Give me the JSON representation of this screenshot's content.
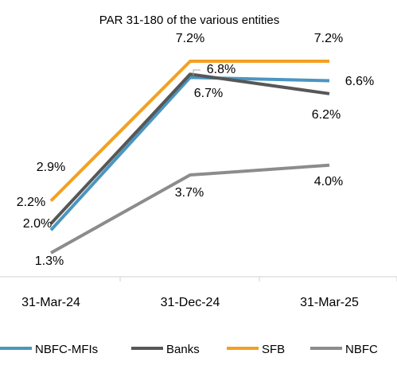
{
  "chart_data": {
    "type": "line",
    "title": "PAR 31-180 of the various entities",
    "xlabel": "",
    "ylabel": "",
    "categories": [
      "31-Mar-24",
      "31-Dec-24",
      "31-Mar-25"
    ],
    "ylim": [
      0,
      8
    ],
    "grid": false,
    "legend_position": "bottom",
    "series": [
      {
        "name": "NBFC-MFIs",
        "color": "#4a96c0",
        "values": [
          2.0,
          6.7,
          6.6
        ],
        "labels": [
          "2.0%",
          "6.7%",
          "6.6%"
        ]
      },
      {
        "name": "Banks",
        "color": "#575757",
        "values": [
          2.2,
          6.8,
          6.2
        ],
        "labels": [
          "2.2%",
          "6.8%",
          "6.2%"
        ]
      },
      {
        "name": "SFB",
        "color": "#f4a020",
        "values": [
          2.9,
          7.2,
          7.2
        ],
        "labels": [
          "2.9%",
          "7.2%",
          "7.2%"
        ]
      },
      {
        "name": "NBFC",
        "color": "#8c8c8c",
        "values": [
          1.3,
          3.7,
          4.0
        ],
        "labels": [
          "1.3%",
          "3.7%",
          "4.0%"
        ]
      }
    ]
  }
}
